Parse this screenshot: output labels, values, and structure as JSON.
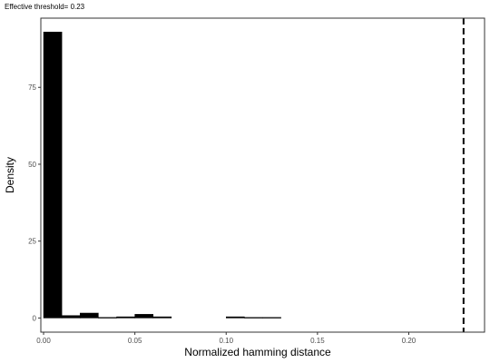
{
  "chart_data": {
    "type": "bar",
    "title": "Effective threshold= 0.23",
    "xlabel": "Normalized hamming distance",
    "ylabel": "Density",
    "xlim": [
      -0.0015,
      0.2415
    ],
    "ylim": [
      -4.6,
      97.5
    ],
    "x_ticks": [
      0.0,
      0.05,
      0.1,
      0.15,
      0.2
    ],
    "x_tick_labels": [
      "0.00",
      "0.05",
      "0.10",
      "0.15",
      "0.20"
    ],
    "y_ticks": [
      0,
      25,
      50,
      75
    ],
    "y_tick_labels": [
      "0",
      "25",
      "50",
      "75"
    ],
    "bin_width": 0.01,
    "bins": [
      {
        "x0": 0.0,
        "x1": 0.01,
        "value": 93.0
      },
      {
        "x0": 0.01,
        "x1": 0.02,
        "value": 0.8
      },
      {
        "x0": 0.02,
        "x1": 0.03,
        "value": 1.6
      },
      {
        "x0": 0.03,
        "x1": 0.04,
        "value": 0.2
      },
      {
        "x0": 0.04,
        "x1": 0.05,
        "value": 0.4
      },
      {
        "x0": 0.05,
        "x1": 0.06,
        "value": 1.2
      },
      {
        "x0": 0.06,
        "x1": 0.07,
        "value": 0.4
      },
      {
        "x0": 0.07,
        "x1": 0.08,
        "value": 0.0
      },
      {
        "x0": 0.08,
        "x1": 0.09,
        "value": 0.0
      },
      {
        "x0": 0.09,
        "x1": 0.1,
        "value": 0.0
      },
      {
        "x0": 0.1,
        "x1": 0.11,
        "value": 0.4
      },
      {
        "x0": 0.11,
        "x1": 0.12,
        "value": 0.2
      },
      {
        "x0": 0.12,
        "x1": 0.13,
        "value": 0.2
      }
    ],
    "threshold": 0.23,
    "threshold_style": "dashed",
    "bar_color": "#000000",
    "grid": false
  }
}
